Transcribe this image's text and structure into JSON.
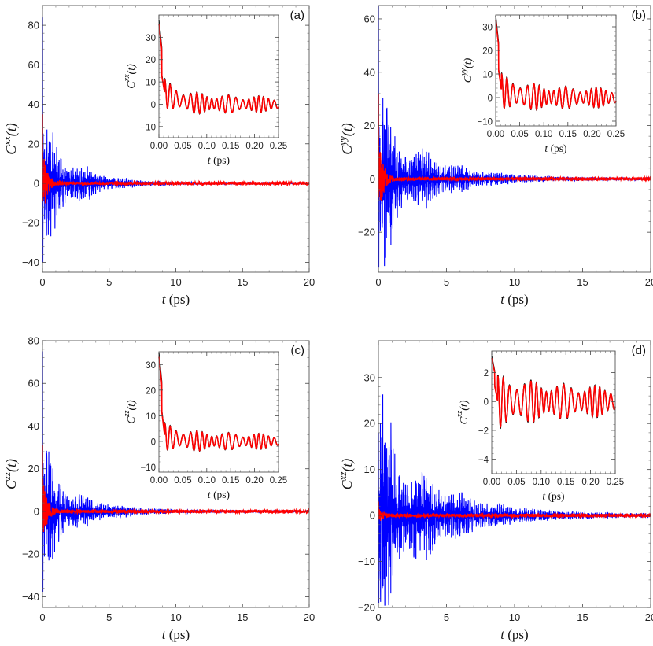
{
  "colors": {
    "full": "#0000ff",
    "fit": "#ff0000",
    "inset_ref": "#000000",
    "frame": "#555555"
  },
  "chart_data": [
    {
      "type": "line",
      "panel_label": "(a)",
      "ylabel_main": "C",
      "ylabel_sup": "xx",
      "ylabel_arg": "(t)",
      "xlabel_t": "t",
      "xlabel_unit": " (ps)",
      "xlim": [
        0,
        20
      ],
      "ylim": [
        -45,
        90
      ],
      "xticks": [
        0,
        5,
        10,
        15,
        20
      ],
      "yticks": [
        -40,
        -20,
        0,
        20,
        40,
        60,
        80
      ],
      "series": [
        {
          "color": "blue",
          "envelope": {
            "peak_max": 84,
            "peak_min": -40,
            "secondary_max": 23,
            "decay_ps": 2.5,
            "final": 0
          }
        },
        {
          "color": "red",
          "envelope": {
            "peak_max": 35,
            "decay_ps": 0.3,
            "final": 0
          }
        }
      ],
      "inset": {
        "type": "line",
        "xlim": [
          0,
          0.25
        ],
        "ylim": [
          -15,
          40
        ],
        "xticks": [
          0.0,
          0.05,
          0.1,
          0.15,
          0.2,
          0.25
        ],
        "xtick_labels": [
          "0.00",
          "0.05",
          "0.10",
          "0.15",
          "0.20",
          "0.25"
        ],
        "yticks": [
          -10,
          0,
          10,
          20,
          30
        ],
        "ylabel_main": "C",
        "ylabel_sup": "xx",
        "ylabel_arg": "(t)",
        "xlabel_t": "t",
        "xlabel_unit": " (ps)",
        "envelope": {
          "peak": 36,
          "base_after_drop": 5,
          "oscillation_amplitude": 6,
          "final": 0
        }
      }
    },
    {
      "type": "line",
      "panel_label": "(b)",
      "ylabel_main": "C",
      "ylabel_sup": "yy",
      "ylabel_arg": "(t)",
      "xlabel_t": "t",
      "xlabel_unit": " (ps)",
      "xlim": [
        0,
        20
      ],
      "ylim": [
        -35,
        65
      ],
      "xticks": [
        0,
        5,
        10,
        15,
        20
      ],
      "yticks": [
        -20,
        0,
        20,
        40,
        60
      ],
      "series": [
        {
          "color": "blue",
          "envelope": {
            "peak_max": 65,
            "peak_min": -33,
            "secondary_max": 20,
            "decay_ps": 3.5,
            "final": 0
          }
        },
        {
          "color": "red",
          "envelope": {
            "peak_max": 32,
            "decay_ps": 0.3,
            "final": 0
          }
        }
      ],
      "inset": {
        "type": "line",
        "xlim": [
          0,
          0.25
        ],
        "ylim": [
          -12,
          35
        ],
        "xticks": [
          0.0,
          0.05,
          0.1,
          0.15,
          0.2,
          0.25
        ],
        "xtick_labels": [
          "0.00",
          "0.05",
          "0.10",
          "0.15",
          "0.20",
          "0.25"
        ],
        "yticks": [
          -10,
          0,
          10,
          20,
          30
        ],
        "ylabel_main": "C",
        "ylabel_sup": "yy",
        "ylabel_arg": "(t)",
        "xlabel_t": "t",
        "xlabel_unit": " (ps)",
        "envelope": {
          "peak": 33,
          "base_after_drop": 3,
          "oscillation_amplitude": 7,
          "final": 0
        }
      }
    },
    {
      "type": "line",
      "panel_label": "(c)",
      "ylabel_main": "C",
      "ylabel_sup": "zz",
      "ylabel_arg": "(t)",
      "xlabel_t": "t",
      "xlabel_unit": " (ps)",
      "xlim": [
        0,
        20
      ],
      "ylim": [
        -45,
        80
      ],
      "xticks": [
        0,
        5,
        10,
        15,
        20
      ],
      "yticks": [
        -40,
        -20,
        0,
        20,
        40,
        60,
        80
      ],
      "series": [
        {
          "color": "blue",
          "envelope": {
            "peak_max": 75,
            "peak_min": -38,
            "secondary_max": 17,
            "decay_ps": 2.8,
            "final": 0
          }
        },
        {
          "color": "red",
          "envelope": {
            "peak_max": 31,
            "decay_ps": 0.3,
            "final": 0
          }
        }
      ],
      "inset": {
        "type": "line",
        "xlim": [
          0,
          0.25
        ],
        "ylim": [
          -12,
          35
        ],
        "xticks": [
          0.0,
          0.05,
          0.1,
          0.15,
          0.2,
          0.25
        ],
        "xtick_labels": [
          "0.00",
          "0.05",
          "0.10",
          "0.15",
          "0.20",
          "0.25"
        ],
        "yticks": [
          -10,
          0,
          10,
          20,
          30
        ],
        "ylabel_main": "C",
        "ylabel_sup": "zz",
        "ylabel_arg": "(t)",
        "xlabel_t": "t",
        "xlabel_unit": " (ps)",
        "envelope": {
          "peak": 33,
          "base_after_drop": 2,
          "oscillation_amplitude": 5,
          "final": 0
        }
      }
    },
    {
      "type": "line",
      "panel_label": "(d)",
      "ylabel_main": "C",
      "ylabel_sup": "xz",
      "ylabel_arg": "(t)",
      "xlabel_t": "t",
      "xlabel_unit": " (ps)",
      "xlim": [
        0,
        20
      ],
      "ylim": [
        -20,
        38
      ],
      "xticks": [
        0,
        5,
        10,
        15,
        20
      ],
      "yticks": [
        -20,
        -10,
        0,
        10,
        20,
        30
      ],
      "series": [
        {
          "color": "blue",
          "envelope": {
            "peak_max": 18,
            "peak_min": -19,
            "secondary_max": 15,
            "decay_ps": 4,
            "final": 0
          }
        },
        {
          "color": "red",
          "envelope": {
            "peak_max": 3,
            "decay_ps": 0.3,
            "final": 0
          }
        }
      ],
      "inset": {
        "type": "line",
        "xlim": [
          0,
          0.25
        ],
        "ylim": [
          -5,
          3.5
        ],
        "xticks": [
          0.0,
          0.05,
          0.1,
          0.15,
          0.2,
          0.25
        ],
        "xtick_labels": [
          "0.00",
          "0.05",
          "0.10",
          "0.15",
          "0.20",
          "0.25"
        ],
        "yticks": [
          -4,
          -2,
          0,
          2
        ],
        "ylabel_main": "C",
        "ylabel_sup": "xz",
        "ylabel_arg": "(t)",
        "xlabel_t": "t",
        "xlabel_unit": " (ps)",
        "envelope": {
          "peak": 3,
          "base_after_drop": 0,
          "oscillation_amplitude": 1.8,
          "final": 0
        }
      }
    }
  ]
}
